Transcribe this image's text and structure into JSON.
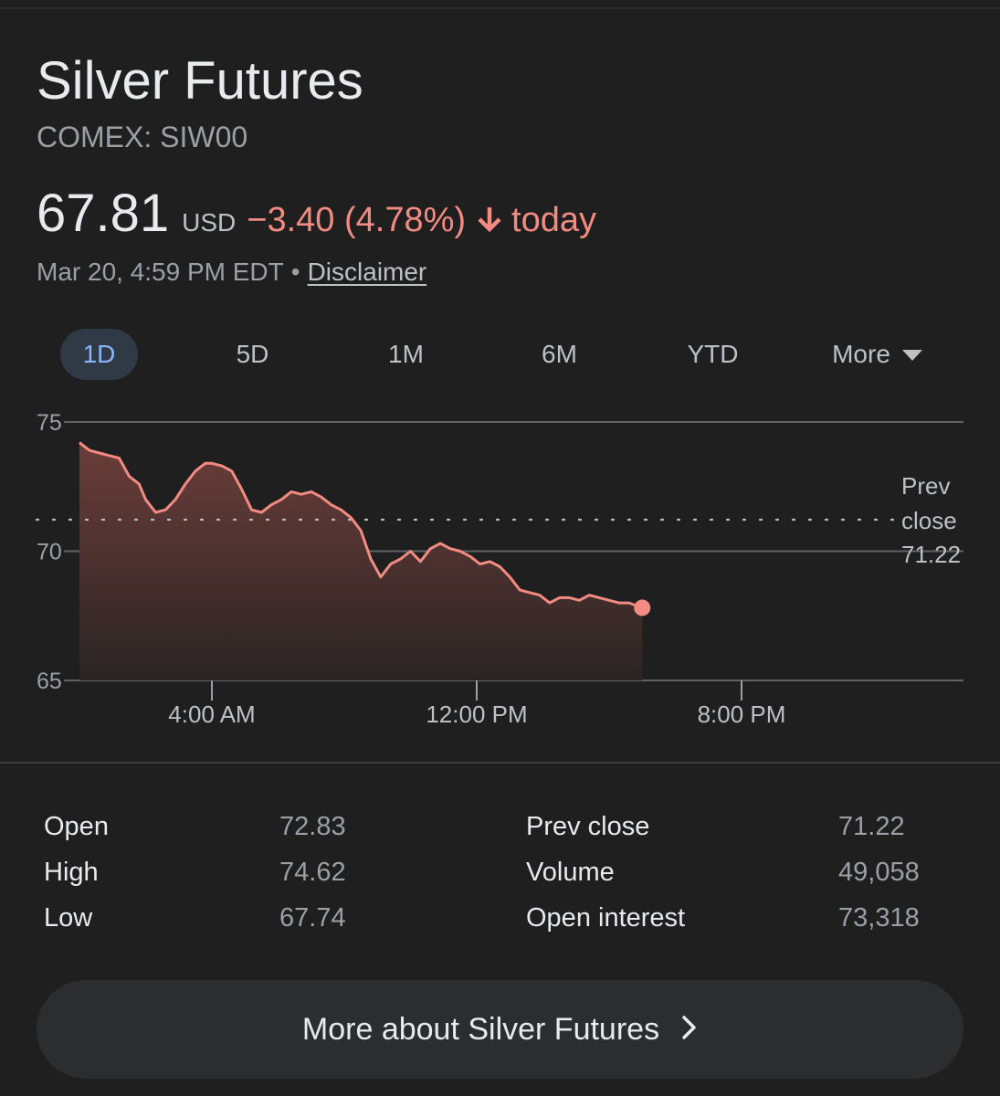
{
  "header": {
    "title": "Silver Futures",
    "ticker": "COMEX: SIW00"
  },
  "quote": {
    "price": "67.81",
    "currency": "USD",
    "change": "−3.40 (4.78%)",
    "direction_icon": "arrow-down-icon",
    "period": "today",
    "timestamp": "Mar 20, 4:59 PM EDT",
    "separator": "•",
    "disclaimer": "Disclaimer",
    "down_color": "#f28b82"
  },
  "range_tabs": {
    "active": "1D",
    "items": [
      {
        "label": "1D"
      },
      {
        "label": "5D"
      },
      {
        "label": "1M"
      },
      {
        "label": "6M"
      },
      {
        "label": "YTD"
      },
      {
        "label": "More"
      }
    ],
    "more_icon": "caret-down-icon"
  },
  "chart_data": {
    "type": "area",
    "ylim": [
      65,
      75
    ],
    "y_ticks": [
      "75",
      "70",
      "65"
    ],
    "x_ticks": [
      {
        "hour": 4,
        "label": "4:00 AM"
      },
      {
        "hour": 12,
        "label": "12:00 PM"
      },
      {
        "hour": 20,
        "label": "8:00 PM"
      }
    ],
    "x_range_hours": [
      0,
      24
    ],
    "series": [
      {
        "x_hours": [
          0.0,
          0.3,
          0.6,
          0.9,
          1.2,
          1.5,
          1.8,
          2.0,
          2.3,
          2.6,
          2.9,
          3.2,
          3.5,
          3.8,
          4.0,
          4.3,
          4.6,
          4.9,
          5.2,
          5.5,
          5.8,
          6.1,
          6.4,
          6.7,
          7.0,
          7.3,
          7.6,
          7.9,
          8.2,
          8.5,
          8.8,
          9.1,
          9.4,
          9.7,
          10.0,
          10.3,
          10.6,
          10.9,
          11.2,
          11.5,
          11.8,
          12.1,
          12.4,
          12.7,
          13.0,
          13.3,
          13.6,
          13.9,
          14.2,
          14.5,
          14.8,
          15.1,
          15.4,
          15.7,
          16.0,
          16.3,
          16.6,
          17.0
        ],
        "values": [
          74.2,
          73.9,
          73.8,
          73.7,
          73.6,
          72.9,
          72.6,
          72.0,
          71.5,
          71.6,
          72.0,
          72.6,
          73.1,
          73.4,
          73.4,
          73.3,
          73.1,
          72.4,
          71.6,
          71.5,
          71.8,
          72.0,
          72.3,
          72.2,
          72.3,
          72.1,
          71.8,
          71.6,
          71.3,
          70.8,
          69.7,
          69.0,
          69.5,
          69.7,
          70.0,
          69.6,
          70.1,
          70.3,
          70.1,
          70.0,
          69.8,
          69.5,
          69.6,
          69.4,
          69.0,
          68.5,
          68.4,
          68.3,
          68.0,
          68.2,
          68.2,
          68.1,
          68.3,
          68.2,
          68.1,
          68.0,
          68.0,
          67.81
        ]
      }
    ],
    "prev_close": {
      "value": 71.22,
      "label_line1": "Prev",
      "label_line2": "close",
      "label_value": "71.22"
    },
    "line_color": "#f28b82",
    "grid": true
  },
  "stats": {
    "rows": [
      {
        "label": "Open",
        "value": "72.83"
      },
      {
        "label": "High",
        "value": "74.62"
      },
      {
        "label": "Low",
        "value": "67.74"
      },
      {
        "label": "Prev close",
        "value": "71.22"
      },
      {
        "label": "Volume",
        "value": "49,058"
      },
      {
        "label": "Open interest",
        "value": "73,318"
      }
    ]
  },
  "more_button": {
    "label": "More about Silver Futures",
    "icon": "chevron-right-icon"
  }
}
